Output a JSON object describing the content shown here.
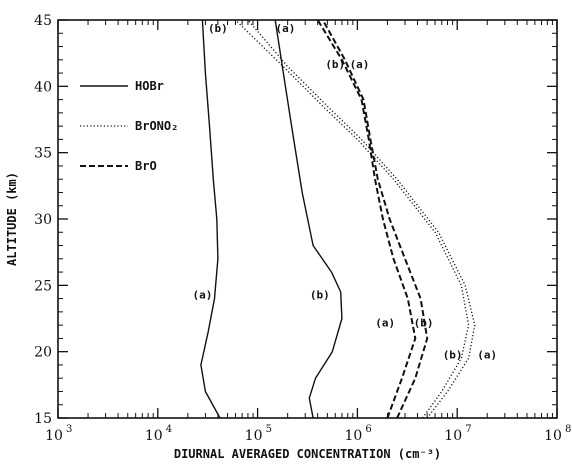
{
  "chart_data": {
    "type": "line",
    "title": "",
    "xlabel": "DIURNAL AVERAGED CONCENTRATION (cm⁻³)",
    "ylabel": "ALTITUDE (km)",
    "xscale": "log",
    "xlim": [
      1000,
      100000000
    ],
    "ylim": [
      15,
      45
    ],
    "x_ticks": [
      {
        "value": 1000,
        "base": "10",
        "exp": "3"
      },
      {
        "value": 10000,
        "base": "10",
        "exp": "4"
      },
      {
        "value": 100000,
        "base": "10",
        "exp": "5"
      },
      {
        "value": 1000000,
        "base": "10",
        "exp": "6"
      },
      {
        "value": 10000000,
        "base": "10",
        "exp": "7"
      },
      {
        "value": 100000000,
        "base": "10",
        "exp": "8"
      }
    ],
    "y_ticks": [
      15,
      20,
      25,
      30,
      35,
      40,
      45
    ],
    "grid": false,
    "legend_position": "upper-left",
    "legend": [
      {
        "label": "HOBr",
        "style": "solid"
      },
      {
        "label": "BrONO₂",
        "style": "dotted"
      },
      {
        "label": "BrO",
        "style": "dashed"
      }
    ],
    "series": [
      {
        "species": "HOBr",
        "case": "(a)",
        "style": "solid",
        "points": [
          [
            42000,
            15
          ],
          [
            30000,
            17
          ],
          [
            27000,
            19
          ],
          [
            32000,
            21.5
          ],
          [
            37000,
            24
          ],
          [
            40000,
            27
          ],
          [
            39000,
            30
          ],
          [
            36000,
            33
          ],
          [
            33000,
            37
          ],
          [
            30000,
            41
          ],
          [
            28000,
            45
          ]
        ]
      },
      {
        "species": "HOBr",
        "case": "(b)",
        "style": "solid",
        "points": [
          [
            360000,
            15
          ],
          [
            330000,
            16.5
          ],
          [
            380000,
            18
          ],
          [
            560000,
            20
          ],
          [
            700000,
            22.5
          ],
          [
            680000,
            24.5
          ],
          [
            550000,
            26
          ],
          [
            360000,
            28
          ],
          [
            280000,
            32
          ],
          [
            230000,
            36
          ],
          [
            190000,
            40
          ],
          [
            150000,
            45
          ]
        ]
      },
      {
        "species": "BrONO₂",
        "case": "(a)",
        "style": "dotted",
        "points": [
          [
            5000000,
            15
          ],
          [
            8000000,
            17
          ],
          [
            13000000,
            19.5
          ],
          [
            15000000,
            22
          ],
          [
            12000000,
            25
          ],
          [
            6500000,
            29
          ],
          [
            2500000,
            33
          ],
          [
            1100000,
            36
          ],
          [
            500000,
            38.5
          ],
          [
            200000,
            41.5
          ],
          [
            80000,
            45
          ]
        ]
      },
      {
        "species": "BrONO₂",
        "case": "(b)",
        "style": "dotted",
        "points": [
          [
            4500000,
            15
          ],
          [
            7000000,
            17
          ],
          [
            11000000,
            19.5
          ],
          [
            13000000,
            22
          ],
          [
            11000000,
            25
          ],
          [
            6000000,
            29
          ],
          [
            2300000,
            33
          ],
          [
            1000000,
            36
          ],
          [
            450000,
            38.5
          ],
          [
            180000,
            41.5
          ],
          [
            60000,
            45
          ]
        ]
      },
      {
        "species": "BrO",
        "case": "(a)",
        "style": "dashed",
        "points": [
          [
            2000000,
            15
          ],
          [
            2800000,
            18
          ],
          [
            3800000,
            21
          ],
          [
            3200000,
            24
          ],
          [
            2300000,
            27
          ],
          [
            1800000,
            30
          ],
          [
            1500000,
            33
          ],
          [
            1300000,
            36
          ],
          [
            1100000,
            39
          ],
          [
            700000,
            42
          ],
          [
            400000,
            45
          ]
        ]
      },
      {
        "species": "BrO",
        "case": "(b)",
        "style": "dashed",
        "points": [
          [
            2500000,
            15
          ],
          [
            3800000,
            18
          ],
          [
            5000000,
            21
          ],
          [
            4300000,
            24
          ],
          [
            3000000,
            27
          ],
          [
            2100000,
            30
          ],
          [
            1600000,
            33
          ],
          [
            1350000,
            36
          ],
          [
            1150000,
            39
          ],
          [
            750000,
            42
          ],
          [
            450000,
            45
          ]
        ]
      }
    ],
    "annotations": [
      {
        "text": "(a)",
        "x": 28000,
        "y": 24.3
      },
      {
        "text": "(b)",
        "x": 420000,
        "y": 24.3
      },
      {
        "text": "(a)",
        "x": 1900000,
        "y": 22.2
      },
      {
        "text": "(b)",
        "x": 4600000,
        "y": 22.2
      },
      {
        "text": "(b)",
        "x": 9000000,
        "y": 19.8
      },
      {
        "text": "(a)",
        "x": 20000000,
        "y": 19.8
      },
      {
        "text": "(b)",
        "x": 40000,
        "y": 44.4
      },
      {
        "text": "(a)",
        "x": 190000,
        "y": 44.4
      },
      {
        "text": "(b)",
        "x": 600000,
        "y": 41.7
      },
      {
        "text": "(a)",
        "x": 1050000,
        "y": 41.7
      }
    ],
    "colors": {
      "ink": "#111111",
      "background": "#ffffff"
    }
  }
}
